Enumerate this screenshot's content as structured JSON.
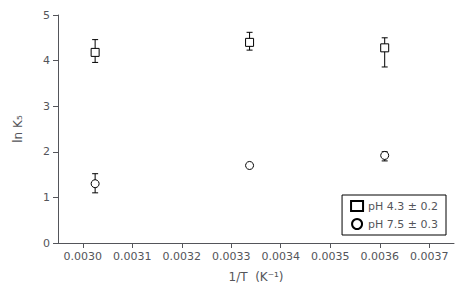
{
  "chart_data": {
    "type": "scatter",
    "xlabel": "1/T  (K⁻¹)",
    "ylabel": "ln K₅",
    "xlim": [
      0.00295,
      0.00375
    ],
    "ylim": [
      0.0,
      5.0
    ],
    "xticks": [
      {
        "value": 0.003,
        "label": "0.0030"
      },
      0.0031,
      0.0032,
      0.0033,
      0.0034,
      0.0035,
      0.0036,
      0.0037
    ],
    "yticks": [
      0,
      1,
      2,
      3,
      4,
      5
    ],
    "grid": false,
    "legend": "lower right",
    "series": [
      {
        "name": "pH 4.3 ± 0.2",
        "marker": "square",
        "color": "#000000",
        "x": [
          0.003025,
          0.003337,
          0.00361
        ],
        "values": [
          4.18,
          4.4,
          4.28
        ],
        "yerr_low": [
          0.22,
          0.17,
          0.42
        ],
        "yerr_high": [
          0.28,
          0.22,
          0.22
        ]
      },
      {
        "name": "pH 7.5 ± 0.3",
        "marker": "circle",
        "color": "#000000",
        "x": [
          0.003025,
          0.003337,
          0.00361
        ],
        "values": [
          1.3,
          1.7,
          1.92
        ],
        "yerr_low": [
          0.2,
          0.03,
          0.12
        ],
        "yerr_high": [
          0.22,
          0.03,
          0.08
        ]
      }
    ]
  }
}
